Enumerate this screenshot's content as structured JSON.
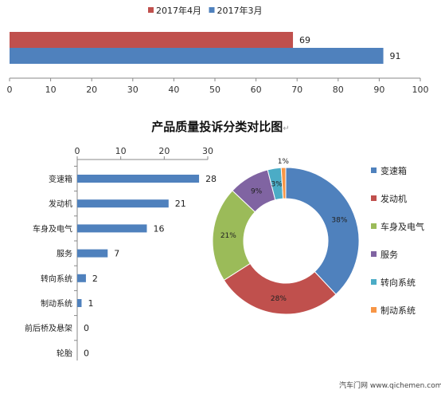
{
  "top_chart": {
    "chart_data": {
      "type": "bar",
      "orientation": "horizontal",
      "series": [
        {
          "name": "2017年4月",
          "values": [
            69
          ],
          "color": "#c0504d"
        },
        {
          "name": "2017年3月",
          "values": [
            91
          ],
          "color": "#4f81bd"
        }
      ],
      "xlim": [
        0,
        100
      ],
      "x_ticks": [
        0,
        10,
        20,
        30,
        40,
        50,
        60,
        70,
        80,
        90,
        100
      ],
      "legend_position": "top-center"
    }
  },
  "bottom_title": "产品质量投诉分类对比图",
  "bar_chart": {
    "chart_data": {
      "type": "bar",
      "orientation": "horizontal",
      "categories": [
        "变速箱",
        "发动机",
        "车身及电气",
        "服务",
        "转向系统",
        "制动系统",
        "前后桥及悬架",
        "轮胎"
      ],
      "values": [
        28,
        21,
        16,
        7,
        2,
        1,
        0,
        0
      ],
      "xlim": [
        0,
        30
      ],
      "x_ticks": [
        0,
        10,
        20,
        30
      ],
      "axis_position": "top",
      "color": "#4f81bd"
    }
  },
  "donut_chart": {
    "chart_data": {
      "type": "pie",
      "style": "donut",
      "labels": [
        "变速箱",
        "发动机",
        "车身及电气",
        "服务",
        "转向系统",
        "制动系统"
      ],
      "values": [
        38,
        28,
        21,
        9,
        3,
        1
      ],
      "value_labels": [
        "38%",
        "28%",
        "21%",
        "9%",
        "3%",
        "1%"
      ],
      "colors": [
        "#4f81bd",
        "#c0504d",
        "#9bbb59",
        "#8064a2",
        "#4bacc6",
        "#f79646"
      ],
      "legend_position": "right"
    }
  },
  "watermark": "汽车门网 www.qichemen.com"
}
